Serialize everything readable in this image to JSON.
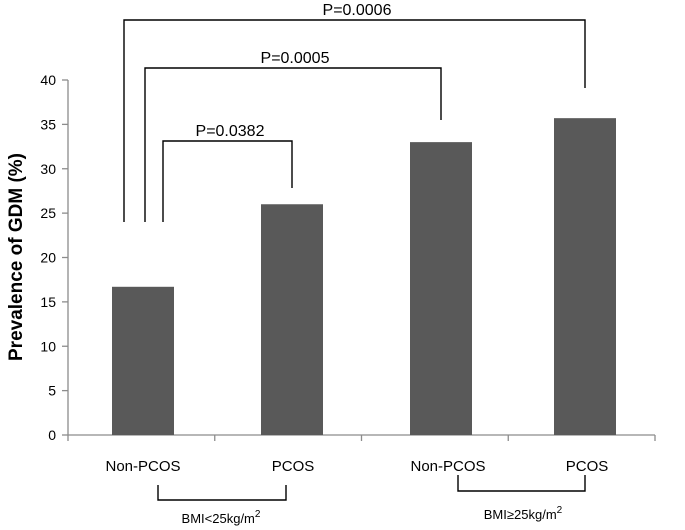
{
  "chart_data": {
    "type": "bar",
    "ylabel": "Prevalence of GDM (%)",
    "ylim": [
      0,
      40
    ],
    "yticks": [
      0,
      5,
      10,
      15,
      20,
      25,
      30,
      35,
      40
    ],
    "categories": [
      "Non-PCOS",
      "PCOS",
      "Non-PCOS",
      "PCOS"
    ],
    "values": [
      16.7,
      26.0,
      33.0,
      35.7
    ],
    "bar_color": "#595959",
    "groups": [
      {
        "label": "BMI<25kg/m",
        "superscript": "2",
        "categories": [
          0,
          1
        ]
      },
      {
        "label": "BMI≥25kg/m",
        "superscript": "2",
        "categories": [
          2,
          3
        ]
      }
    ],
    "comparisons": [
      {
        "from": 0,
        "to": 1,
        "label": "P=0.0382"
      },
      {
        "from": 0,
        "to": 2,
        "label": "P=0.0005"
      },
      {
        "from": 0,
        "to": 3,
        "label": "P=0.0006"
      }
    ],
    "grid": false,
    "legend": "none"
  }
}
